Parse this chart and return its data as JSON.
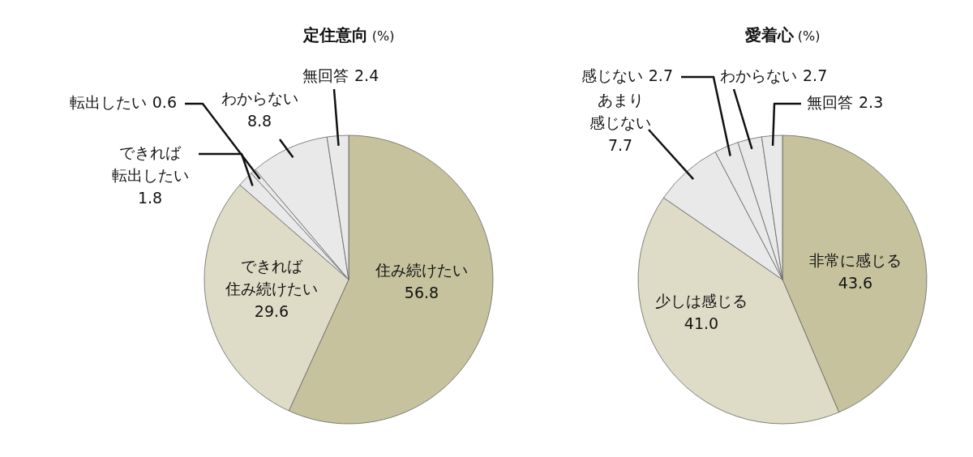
{
  "chart_data": [
    {
      "type": "pie",
      "title": "**定住意向** (%)",
      "categories": [
        "住み続けたい",
        "できれば住み続けたい",
        "できれば転出したい",
        "転出したい",
        "わからない",
        "無回答"
      ],
      "values": [
        56.8,
        29.6,
        1.8,
        0.6,
        8.8,
        2.4
      ],
      "value_labels": [
        "56.8",
        "29.6",
        "1.8",
        "0.6",
        "8.8",
        "2.4"
      ],
      "colors": [
        "#c5c29d",
        "#dedbc6",
        "#e9e9e9",
        "#e9e9e9",
        "#e9e9e9",
        "#e9e9e9"
      ]
    },
    {
      "type": "pie",
      "title": "**愛着心** (%)",
      "categories": [
        "非常に感じる",
        "少しは感じる",
        "あまり感じない",
        "感じない",
        "わからない",
        "無回答"
      ],
      "values": [
        43.6,
        41.0,
        7.7,
        2.7,
        2.7,
        2.3
      ],
      "value_labels": [
        "43.6",
        "41.0",
        "7.7",
        "2.7",
        "2.7",
        "2.3"
      ],
      "colors": [
        "#c5c29d",
        "#dedbc6",
        "#e9e9e9",
        "#e9e9e9",
        "#e9e9e9",
        "#e9e9e9"
      ]
    }
  ]
}
